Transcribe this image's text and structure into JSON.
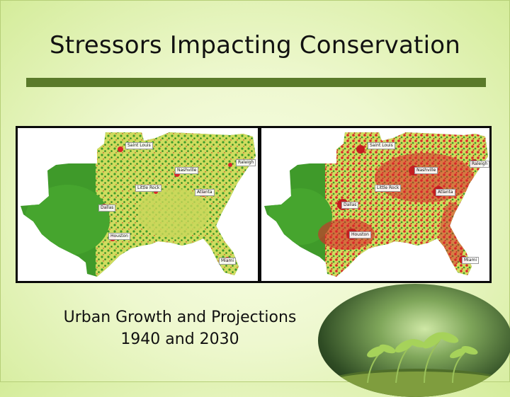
{
  "slide": {
    "title": "Stressors Impacting Conservation",
    "caption_line1": "Urban Growth and Projections",
    "caption_line2": "1940 and 2030"
  },
  "maps": {
    "left": {
      "cities": [
        "Saint Louis",
        "Raleigh",
        "Nashville",
        "Little Rock",
        "Atlanta",
        "Dallas",
        "Houston",
        "Miami"
      ]
    },
    "right": {
      "cities": [
        "Saint Louis",
        "Raleigh",
        "Nashville",
        "Little Rock",
        "Atlanta",
        "Dallas",
        "Houston",
        "Miami"
      ]
    }
  },
  "colors": {
    "accent_rule": "#5a7a2a",
    "land_green": "#3f9a2a",
    "land_yellow": "#d9e36a",
    "urban_red": "#d8262a"
  },
  "icons": {
    "photo": "sprout-photo"
  }
}
